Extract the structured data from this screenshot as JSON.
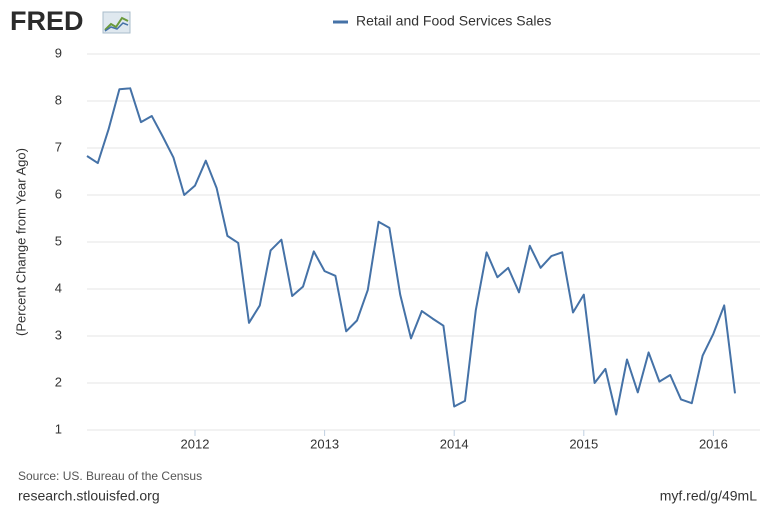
{
  "chart_data": {
    "type": "line",
    "logo": "FRED",
    "y_label": "(Percent Change from Year Ago)",
    "source": "Source: US. Bureau of the Census",
    "credit": "research.stlouisfed.org",
    "link": "myf.red/g/49mL",
    "x": [
      "2011-03",
      "2011-04",
      "2011-05",
      "2011-06",
      "2011-07",
      "2011-08",
      "2011-09",
      "2011-10",
      "2011-11",
      "2011-12",
      "2012-01",
      "2012-02",
      "2012-03",
      "2012-04",
      "2012-05",
      "2012-06",
      "2012-07",
      "2012-08",
      "2012-09",
      "2012-10",
      "2012-11",
      "2012-12",
      "2013-01",
      "2013-02",
      "2013-03",
      "2013-04",
      "2013-05",
      "2013-06",
      "2013-07",
      "2013-08",
      "2013-09",
      "2013-10",
      "2013-11",
      "2013-12",
      "2014-01",
      "2014-02",
      "2014-03",
      "2014-04",
      "2014-05",
      "2014-06",
      "2014-07",
      "2014-08",
      "2014-09",
      "2014-10",
      "2014-11",
      "2014-12",
      "2015-01",
      "2015-02",
      "2015-03",
      "2015-04",
      "2015-05",
      "2015-06",
      "2015-07",
      "2015-08",
      "2015-09",
      "2015-10",
      "2015-11",
      "2015-12",
      "2016-01",
      "2016-02",
      "2016-03"
    ],
    "series": [
      {
        "name": "Retail and Food Services Sales",
        "color": "#4572a7",
        "values": [
          6.83,
          6.68,
          7.4,
          8.25,
          8.27,
          7.55,
          7.68,
          7.25,
          6.8,
          6.0,
          6.2,
          6.73,
          6.15,
          5.13,
          4.98,
          3.28,
          3.65,
          4.82,
          5.05,
          3.85,
          4.05,
          4.8,
          4.38,
          4.28,
          3.1,
          3.33,
          3.98,
          5.43,
          5.3,
          3.88,
          2.95,
          3.53,
          3.37,
          3.22,
          1.5,
          1.62,
          3.55,
          4.78,
          4.25,
          4.45,
          3.93,
          4.92,
          4.45,
          4.7,
          4.78,
          3.5,
          3.88,
          2.0,
          2.3,
          1.33,
          2.5,
          1.8,
          2.65,
          2.03,
          2.17,
          1.65,
          1.57,
          2.58,
          3.05,
          3.65,
          1.78
        ]
      }
    ],
    "xlim": [
      "2011-03",
      "2016-03"
    ],
    "xticks": [
      2012,
      2013,
      2014,
      2015,
      2016
    ],
    "ylim": [
      1,
      9
    ],
    "yticks": [
      1,
      2,
      3,
      4,
      5,
      6,
      7,
      8,
      9
    ],
    "grid": true,
    "legend": "top"
  }
}
